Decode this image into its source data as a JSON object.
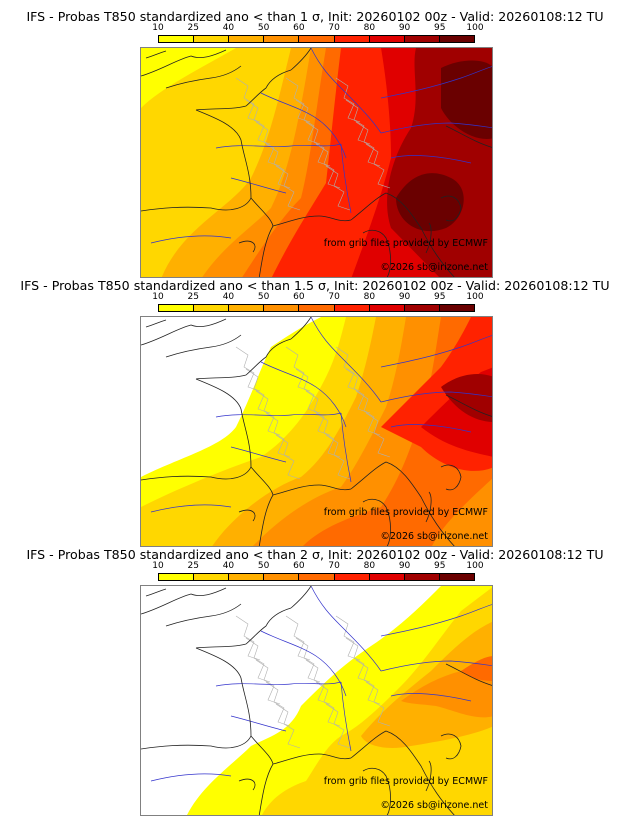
{
  "panels": [
    {
      "title": "IFS - Probas T850  standardized ano < than 1 σ, Init: 20260102 00z - Valid: 20260108:12 TU",
      "threshold_sigma": 1,
      "field_description": "Probabilities increase from west (10-40% over Atlantic/western France) to east (90-100% over Alps, northern Italy, central Europe)"
    },
    {
      "title": "IFS - Probas T850  standardized ano < than 1.5 σ, Init: 20260102 00z - Valid: 20260108:12 TU",
      "threshold_sigma": 1.5,
      "field_description": "Below 10% over NW France and UK; 10-60% over central/southern France and Spain; 70-95% over Alps and central Europe"
    },
    {
      "title": "IFS - Probas T850  standardized ano < than 2 σ, Init: 20260102 00z - Valid: 20260108:12 TU",
      "threshold_sigma": 2,
      "field_description": "Below 10% over most of France and UK; 10-40% over SE France, Mediterranean; 50-70% over Alps/Austria"
    }
  ],
  "colorbar": {
    "labels": [
      "10",
      "25",
      "40",
      "50",
      "60",
      "70",
      "80",
      "90",
      "95",
      "100"
    ],
    "colors": [
      "#ffff00",
      "#ffd700",
      "#ffb000",
      "#ff9000",
      "#ff6a00",
      "#ff2200",
      "#e00000",
      "#a00000",
      "#6a0000"
    ]
  },
  "credits": {
    "source": "from grib files provided by ECMWF",
    "copyright": "©2026 sb@irizone.net"
  }
}
